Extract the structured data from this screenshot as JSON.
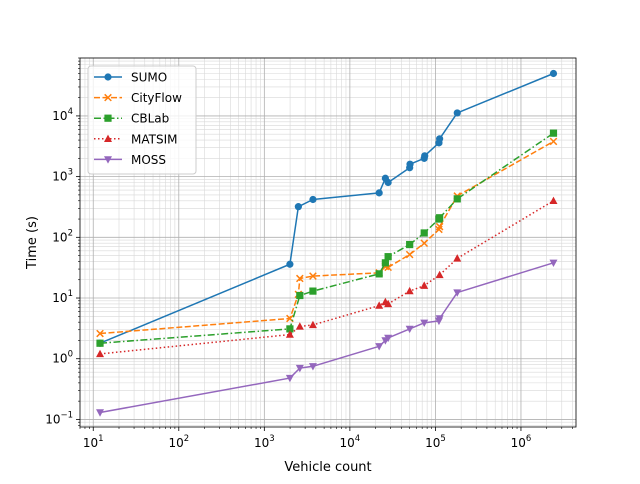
{
  "chart_data": {
    "type": "line",
    "title": "",
    "xlabel": "Vehicle count",
    "ylabel": "Time (s)",
    "xscale": "log",
    "yscale": "log",
    "xlim": [
      7.0,
      4400000
    ],
    "ylim": [
      0.075,
      90000
    ],
    "x_ticks": [
      {
        "value": 10,
        "base": "10",
        "exp": "1"
      },
      {
        "value": 100,
        "base": "10",
        "exp": "2"
      },
      {
        "value": 1000,
        "base": "10",
        "exp": "3"
      },
      {
        "value": 10000,
        "base": "10",
        "exp": "4"
      },
      {
        "value": 100000,
        "base": "10",
        "exp": "5"
      },
      {
        "value": 1000000,
        "base": "10",
        "exp": "6"
      }
    ],
    "y_ticks": [
      {
        "value": 0.1,
        "base": "10",
        "exp": "−1"
      },
      {
        "value": 1,
        "base": "10",
        "exp": "0"
      },
      {
        "value": 10,
        "base": "10",
        "exp": "1"
      },
      {
        "value": 100,
        "base": "10",
        "exp": "2"
      },
      {
        "value": 1000,
        "base": "10",
        "exp": "3"
      },
      {
        "value": 10000,
        "base": "10",
        "exp": "4"
      }
    ],
    "grid": "major and minor",
    "legend_position": "top-left",
    "series": [
      {
        "name": "SUMO",
        "color": "#1f77b4",
        "marker": "circle",
        "linestyle": "solid",
        "points": [
          [
            12,
            1.8
          ],
          [
            1990,
            36
          ],
          [
            2500,
            320
          ],
          [
            3700,
            420
          ],
          [
            22000,
            540
          ],
          [
            26000,
            940
          ],
          [
            28000,
            800
          ],
          [
            50000,
            1400
          ],
          [
            50500,
            1600
          ],
          [
            74000,
            2000
          ],
          [
            75000,
            2200
          ],
          [
            110000,
            3600
          ],
          [
            112000,
            4200
          ],
          [
            180000,
            11200
          ],
          [
            2400000,
            50000
          ]
        ]
      },
      {
        "name": "CityFlow",
        "color": "#ff7f0e",
        "marker": "x",
        "linestyle": "dashed",
        "points": [
          [
            12,
            2.6
          ],
          [
            1990,
            4.6
          ],
          [
            2500,
            11.5
          ],
          [
            2600,
            21
          ],
          [
            3700,
            23
          ],
          [
            22000,
            26
          ],
          [
            26000,
            33
          ],
          [
            28000,
            32
          ],
          [
            50000,
            52
          ],
          [
            74000,
            80
          ],
          [
            110000,
            135
          ],
          [
            112000,
            150
          ],
          [
            180000,
            480
          ],
          [
            2400000,
            3800
          ]
        ]
      },
      {
        "name": "CBLab",
        "color": "#2ca02c",
        "marker": "square",
        "linestyle": "dashdot",
        "points": [
          [
            12,
            1.8
          ],
          [
            1990,
            3.1
          ],
          [
            2600,
            11
          ],
          [
            3700,
            13
          ],
          [
            22000,
            25
          ],
          [
            26000,
            38
          ],
          [
            28000,
            48
          ],
          [
            50000,
            76
          ],
          [
            74000,
            118
          ],
          [
            110000,
            200
          ],
          [
            112000,
            210
          ],
          [
            180000,
            430
          ],
          [
            2400000,
            5200
          ]
        ]
      },
      {
        "name": "MATSIM",
        "color": "#d62728",
        "marker": "triangle-up",
        "linestyle": "dotted",
        "points": [
          [
            12,
            1.2
          ],
          [
            1990,
            2.5
          ],
          [
            2600,
            3.4
          ],
          [
            3700,
            3.6
          ],
          [
            22000,
            7.5
          ],
          [
            26000,
            8.6
          ],
          [
            28000,
            8.0
          ],
          [
            50000,
            13
          ],
          [
            74000,
            16
          ],
          [
            112000,
            24
          ],
          [
            180000,
            45
          ],
          [
            2400000,
            400
          ]
        ]
      },
      {
        "name": "MOSS",
        "color": "#9467bd",
        "marker": "triangle-down",
        "linestyle": "solid",
        "points": [
          [
            12,
            0.13
          ],
          [
            1990,
            0.48
          ],
          [
            2600,
            0.7
          ],
          [
            3700,
            0.75
          ],
          [
            22000,
            1.6
          ],
          [
            26000,
            2.0
          ],
          [
            28000,
            2.2
          ],
          [
            50000,
            3.1
          ],
          [
            74000,
            3.9
          ],
          [
            110000,
            4.2
          ],
          [
            112000,
            4.6
          ],
          [
            180000,
            12.3
          ],
          [
            2400000,
            38
          ]
        ]
      }
    ]
  }
}
